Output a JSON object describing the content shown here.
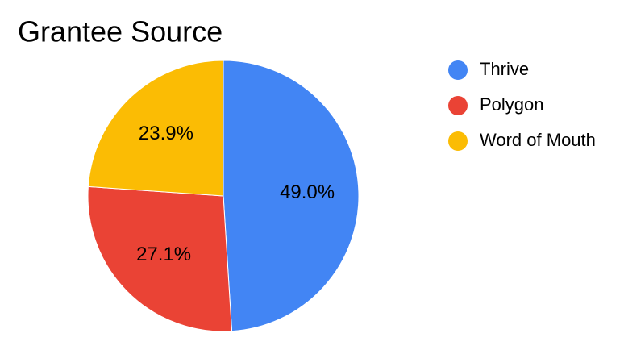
{
  "chart_data": {
    "type": "pie",
    "title": "Grantee Source",
    "categories": [
      "Thrive",
      "Polygon",
      "Word of Mouth"
    ],
    "values": [
      49.0,
      27.1,
      23.9
    ],
    "value_labels": [
      "49.0%",
      "27.1%",
      "23.9%"
    ],
    "colors": [
      "#4285f4",
      "#ea4335",
      "#fbbc04"
    ],
    "legend": "right"
  }
}
